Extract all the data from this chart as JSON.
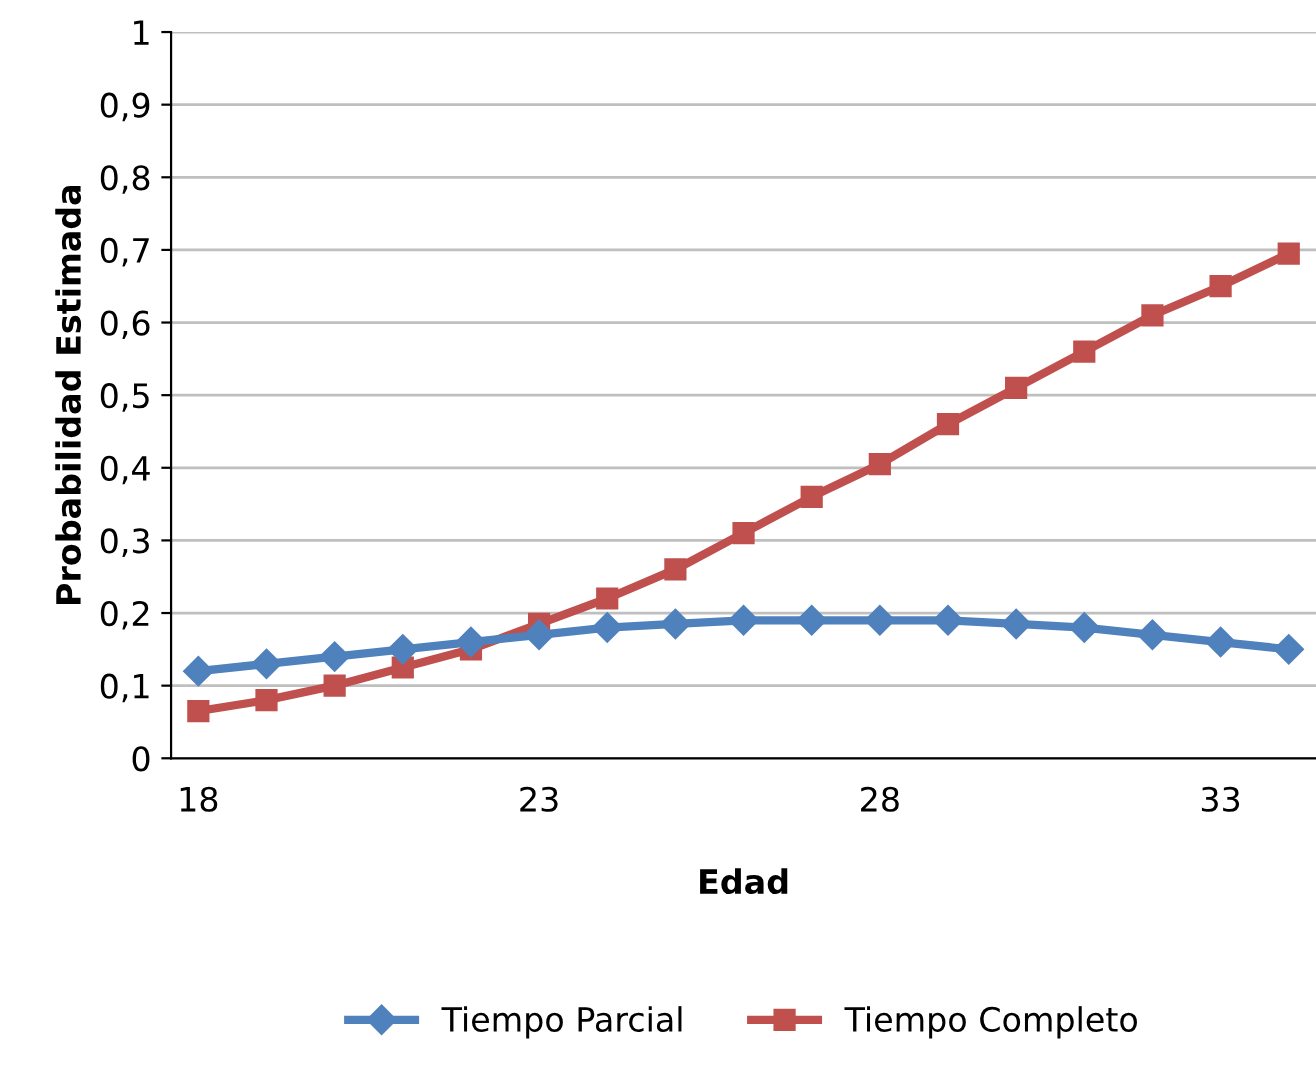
{
  "chart_data": {
    "type": "line",
    "xlabel": "Edad",
    "ylabel": "Probabilidad Estimada",
    "categories": [
      "18",
      null,
      null,
      null,
      null,
      "23",
      null,
      null,
      null,
      null,
      "28",
      null,
      null,
      null,
      null,
      "33",
      null
    ],
    "series": [
      {
        "name": "Tiempo Parcial",
        "color": "#4f81bd",
        "marker": "diamond",
        "values": [
          0.12,
          0.13,
          0.14,
          0.15,
          0.16,
          0.17,
          0.18,
          0.185,
          0.19,
          0.19,
          0.19,
          0.19,
          0.185,
          0.18,
          0.17,
          0.16,
          0.15
        ]
      },
      {
        "name": "Tiempo Completo",
        "color": "#c0504d",
        "marker": "square",
        "values": [
          0.065,
          0.08,
          0.1,
          0.125,
          0.15,
          0.185,
          0.22,
          0.26,
          0.31,
          0.36,
          0.405,
          0.46,
          0.51,
          0.56,
          0.61,
          0.65,
          0.695
        ]
      }
    ],
    "ylim": [
      0,
      1
    ],
    "yticks": [
      0,
      {
        "value": 0.1,
        "label": "0,1"
      },
      {
        "value": 0.2,
        "label": "0,2"
      },
      {
        "value": 0.3,
        "label": "0,3"
      },
      {
        "value": 0.4,
        "label": "0,4"
      },
      {
        "value": 0.5,
        "label": "0,5"
      },
      {
        "value": 0.6,
        "label": "0,6"
      },
      {
        "value": 0.7,
        "label": "0,7"
      },
      {
        "value": 0.8,
        "label": "0,8"
      },
      {
        "value": 0.9,
        "label": "0,9"
      },
      1
    ],
    "grid": "y",
    "legend": "bottom",
    "line_style": "solid"
  }
}
